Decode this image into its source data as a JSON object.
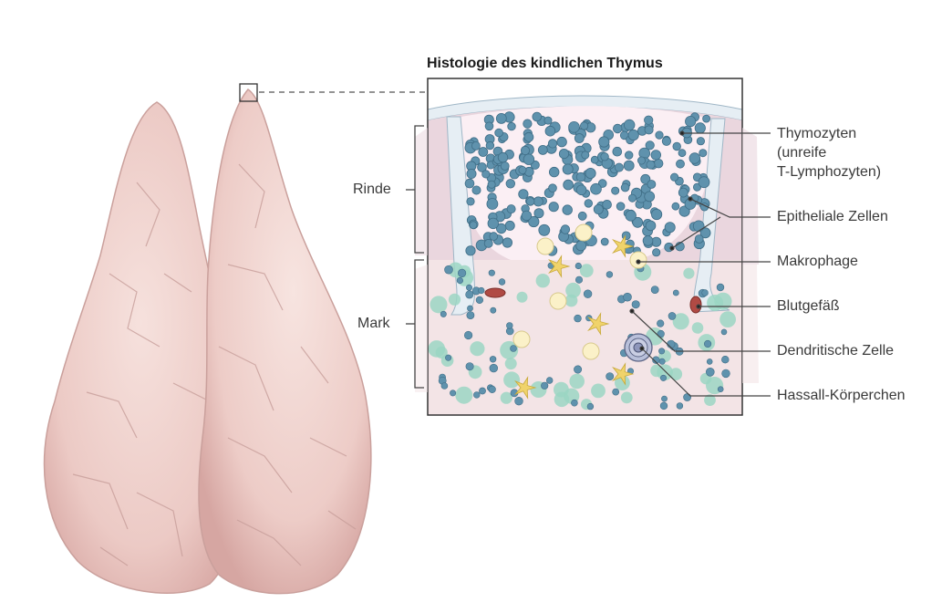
{
  "title": "Histologie des kindlichen Thymus",
  "zones": {
    "rinde": "Rinde",
    "mark": "Mark"
  },
  "labels": {
    "thymozyten_1": "Thymozyten",
    "thymozyten_2": "(unreife",
    "thymozyten_3": "T-Lymphozyten)",
    "epitheliale": "Epitheliale Zellen",
    "makrophage": "Makrophage",
    "blutgefaess": "Blutgefäß",
    "dendritische": "Dendritische Zelle",
    "hassall": "Hassall-Körperchen"
  },
  "colors": {
    "organ": "#f2d6d2",
    "organ_shadow": "#d9aaa6",
    "capsule": "#e6eef4",
    "cortex_bg": "#ead6de",
    "medulla_bg": "#f3e4e6",
    "thymocyte": "#5f92ad",
    "epithelial": "#9bd6c3",
    "macrophage": "#fbf1c8",
    "dendritic": "#f0d36b",
    "vessel": "#b04a44",
    "line": "#444444"
  }
}
